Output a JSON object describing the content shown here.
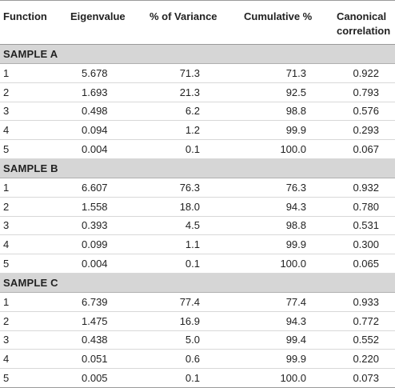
{
  "table": {
    "headers": {
      "function": "Function",
      "eigenvalue": "Eigenvalue",
      "variance": "% of Variance",
      "cumulative": "Cumulative %",
      "canonical_line1": "Canonical",
      "canonical_line2": "correlation"
    },
    "sections": [
      {
        "title": "SAMPLE A",
        "rows": [
          {
            "function": "1",
            "eigenvalue": "5.678",
            "variance": "71.3",
            "cumulative": "71.3",
            "canonical": "0.922"
          },
          {
            "function": "2",
            "eigenvalue": "1.693",
            "variance": "21.3",
            "cumulative": "92.5",
            "canonical": "0.793"
          },
          {
            "function": "3",
            "eigenvalue": "0.498",
            "variance": "6.2",
            "cumulative": "98.8",
            "canonical": "0.576"
          },
          {
            "function": "4",
            "eigenvalue": "0.094",
            "variance": "1.2",
            "cumulative": "99.9",
            "canonical": "0.293"
          },
          {
            "function": "5",
            "eigenvalue": "0.004",
            "variance": "0.1",
            "cumulative": "100.0",
            "canonical": "0.067"
          }
        ]
      },
      {
        "title": "SAMPLE B",
        "rows": [
          {
            "function": "1",
            "eigenvalue": "6.607",
            "variance": "76.3",
            "cumulative": "76.3",
            "canonical": "0.932"
          },
          {
            "function": "2",
            "eigenvalue": "1.558",
            "variance": "18.0",
            "cumulative": "94.3",
            "canonical": "0.780"
          },
          {
            "function": "3",
            "eigenvalue": "0.393",
            "variance": "4.5",
            "cumulative": "98.8",
            "canonical": "0.531"
          },
          {
            "function": "4",
            "eigenvalue": "0.099",
            "variance": "1.1",
            "cumulative": "99.9",
            "canonical": "0.300"
          },
          {
            "function": "5",
            "eigenvalue": "0.004",
            "variance": "0.1",
            "cumulative": "100.0",
            "canonical": "0.065"
          }
        ]
      },
      {
        "title": "SAMPLE C",
        "rows": [
          {
            "function": "1",
            "eigenvalue": "6.739",
            "variance": "77.4",
            "cumulative": "77.4",
            "canonical": "0.933"
          },
          {
            "function": "2",
            "eigenvalue": "1.475",
            "variance": "16.9",
            "cumulative": "94.3",
            "canonical": "0.772"
          },
          {
            "function": "3",
            "eigenvalue": "0.438",
            "variance": "5.0",
            "cumulative": "99.4",
            "canonical": "0.552"
          },
          {
            "function": "4",
            "eigenvalue": "0.051",
            "variance": "0.6",
            "cumulative": "99.9",
            "canonical": "0.220"
          },
          {
            "function": "5",
            "eigenvalue": "0.005",
            "variance": "0.1",
            "cumulative": "100.0",
            "canonical": "0.073"
          }
        ]
      }
    ]
  }
}
